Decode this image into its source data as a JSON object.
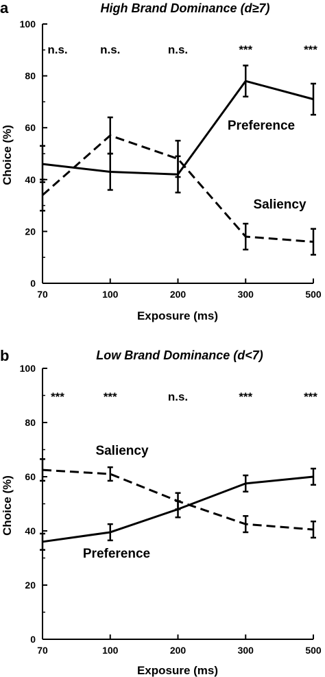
{
  "chart_data": [
    {
      "panel": "a",
      "type": "line",
      "title": "High Brand Dominance (d≥7)",
      "xlabel": "Exposure (ms)",
      "ylabel": "Choice (%)",
      "categories": [
        "70",
        "100",
        "200",
        "300",
        "500"
      ],
      "ylim": [
        0,
        100
      ],
      "yticks": [
        0,
        20,
        40,
        60,
        80,
        100
      ],
      "significance": [
        "n.s.",
        "n.s.",
        "n.s.",
        "***",
        "***"
      ],
      "series": [
        {
          "name": "Preference",
          "style": "solid",
          "values": [
            46,
            43,
            42,
            78,
            71
          ],
          "errors": [
            7,
            7,
            7,
            6,
            6
          ]
        },
        {
          "name": "Saliency",
          "style": "dashed",
          "values": [
            34,
            57,
            48,
            18,
            16
          ],
          "errors": [
            6,
            7,
            7,
            5,
            5
          ]
        }
      ]
    },
    {
      "panel": "b",
      "type": "line",
      "title": "Low Brand Dominance (d<7)",
      "xlabel": "Exposure (ms)",
      "ylabel": "Choice (%)",
      "categories": [
        "70",
        "100",
        "200",
        "300",
        "500"
      ],
      "ylim": [
        0,
        100
      ],
      "yticks": [
        0,
        20,
        40,
        60,
        80,
        100
      ],
      "significance": [
        "***",
        "***",
        "n.s.",
        "***",
        "***"
      ],
      "series": [
        {
          "name": "Preference",
          "style": "solid",
          "values": [
            36,
            39.5,
            48,
            57.5,
            60
          ],
          "errors": [
            3,
            3,
            3,
            3,
            3
          ]
        },
        {
          "name": "Saliency",
          "style": "dashed",
          "values": [
            62.5,
            61,
            51,
            42.5,
            40.5
          ],
          "errors": [
            4,
            2.5,
            3,
            3,
            3
          ]
        }
      ]
    }
  ]
}
